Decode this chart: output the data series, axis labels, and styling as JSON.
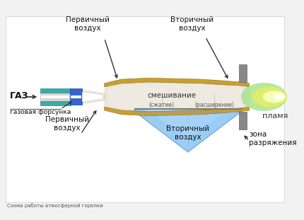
{
  "title": "Схема работы атмосферной горелки",
  "bg_color": "#f2f2f2",
  "labels": {
    "gas": "ГАЗ",
    "nozzle": "газовая форсунка",
    "primary_air_top": "Первичный\nвоздух",
    "primary_air_bottom": "Первичный\nвоздух",
    "secondary_air_top": "Вторичный\nвоздух",
    "secondary_air_bottom": "Вторичный\nвоздух",
    "mixing": "смешивание",
    "flame": "пламя",
    "compression": "(сжатие)",
    "expansion": "(расширение)",
    "zone": "зона\nразряжения"
  },
  "colors": {
    "nozzle_blue": "#3366cc",
    "nozzle_teal": "#3aabab",
    "nozzle_white": "#e8e8e8",
    "burner_body": "#c8a030",
    "burner_dark": "#a07820",
    "mixing_chamber": "#e8e4dc",
    "flame_green": "#a0e080",
    "flame_yellow": "#e8ee60",
    "flame_white": "#f8ffc0",
    "blue_cone": "#70b8f0",
    "blue_cone_light": "#b0d8ff",
    "gray_plate": "#888888",
    "white": "#ffffff",
    "bg": "#f2f2f2"
  }
}
